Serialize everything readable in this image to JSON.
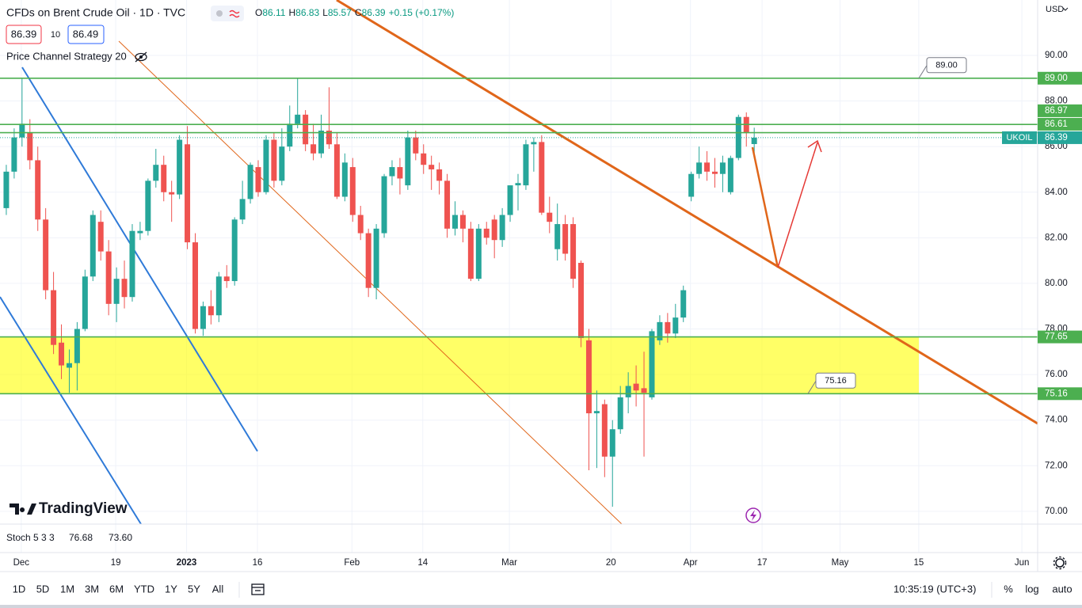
{
  "header": {
    "symbol": "CFDs on Brent Crude Oil · 1D · TVC",
    "o": "O",
    "h": "H",
    "l": "L",
    "c": "C",
    "change": "+0.15 (+0.17%)",
    "bid": "86.39",
    "spread": "10",
    "ask": "86.49",
    "strategy": "Price Channel Strategy 20",
    "currency": "USD",
    "logo": "TradingView"
  },
  "indicator": {
    "name": "Stoch 5 3 3",
    "k": "76.68",
    "d": "73.60"
  },
  "toolbar": {
    "ranges": [
      "1D",
      "5D",
      "1M",
      "3M",
      "6M",
      "YTD",
      "1Y",
      "5Y",
      "All"
    ],
    "clock": "10:35:19 (UTC+3)",
    "percent": "%",
    "log": "log",
    "auto": "auto"
  },
  "chart_data": {
    "type": "candlestick",
    "up_color": "#26a69a",
    "down_color": "#ef5350",
    "level_color": "#4caf50",
    "symbol_label": "UKOIL",
    "grid": true,
    "x": [
      0,
      1,
      2,
      3,
      4,
      5,
      6,
      7,
      8,
      9,
      10,
      11,
      12,
      13,
      14,
      15,
      16,
      17,
      18,
      19,
      20,
      21,
      22,
      23,
      24,
      25,
      26,
      27,
      28,
      29,
      30,
      31,
      32,
      33,
      34,
      35,
      36,
      37,
      38,
      39,
      40,
      41,
      42,
      43,
      44,
      45,
      46,
      47,
      48,
      49,
      50,
      51,
      52,
      53,
      54,
      55,
      56,
      57,
      58,
      59,
      60,
      61,
      62,
      63,
      64,
      65,
      66,
      67,
      68,
      69,
      70,
      71,
      72,
      73,
      74,
      75,
      76,
      77,
      78,
      79,
      80,
      81,
      82,
      83,
      84,
      85,
      86,
      87,
      88,
      89,
      90,
      91,
      92,
      93,
      94,
      95
    ],
    "open": [
      83.3,
      84.9,
      86.4,
      86.6,
      85.4,
      82.8,
      79.7,
      77.4,
      76.3,
      76.5,
      78.0,
      80.3,
      82.7,
      81.4,
      79.1,
      80.2,
      79.4,
      82.2,
      82.3,
      84.5,
      85.2,
      84.0,
      83.9,
      86.1,
      81.8,
      78.0,
      79.0,
      78.6,
      80.3,
      80.1,
      82.8,
      83.7,
      85.1,
      84.0,
      86.3,
      84.5,
      86.0,
      87.0,
      87.4,
      86.1,
      85.7,
      86.7,
      86.1,
      83.8,
      85.1,
      83.0,
      82.2,
      79.8,
      82.2,
      84.7,
      85.1,
      84.3,
      86.4,
      85.7,
      85.2,
      85.0,
      84.5,
      82.4,
      83.0,
      82.4,
      80.2,
      82.4,
      82.8,
      81.9,
      83.0,
      84.3,
      84.3,
      86.1,
      86.2,
      83.1,
      81.5,
      82.6,
      82.6,
      80.9,
      77.5,
      74.3,
      74.7,
      72.4,
      73.6,
      75.0,
      75.6,
      75.4,
      75.0,
      77.5,
      78.3,
      77.8,
      78.5,
      83.8,
      84.8,
      85.3,
      84.9,
      84.8,
      84.0,
      85.5,
      87.3,
      86.11
    ],
    "high": [
      85.2,
      86.8,
      89.0,
      87.2,
      86.0,
      83.3,
      80.5,
      78.2,
      77.1,
      78.3,
      80.6,
      83.2,
      83.2,
      81.9,
      80.7,
      81.0,
      82.6,
      82.7,
      84.6,
      85.9,
      85.6,
      84.5,
      86.5,
      86.9,
      82.2,
      79.2,
      79.7,
      80.5,
      80.8,
      82.9,
      84.5,
      85.3,
      85.4,
      86.5,
      86.6,
      86.8,
      87.8,
      89.0,
      87.6,
      87.0,
      87.4,
      88.6,
      86.6,
      85.7,
      85.5,
      83.4,
      82.4,
      82.6,
      84.8,
      85.4,
      85.5,
      86.7,
      86.7,
      86.1,
      85.6,
      85.3,
      84.8,
      83.6,
      83.2,
      82.7,
      82.6,
      82.7,
      83.0,
      83.3,
      84.3,
      84.8,
      86.3,
      86.4,
      86.5,
      83.8,
      83.5,
      83.0,
      82.9,
      81.0,
      78.0,
      75.3,
      74.9,
      74.0,
      75.5,
      76.1,
      76.4,
      77.0,
      78.0,
      78.6,
      78.7,
      79.1,
      79.9,
      84.9,
      86.0,
      85.8,
      85.5,
      85.6,
      85.6,
      87.4,
      87.5,
      86.83
    ],
    "low": [
      83.0,
      84.6,
      86.0,
      85.0,
      82.3,
      79.3,
      76.9,
      75.8,
      75.2,
      75.3,
      77.9,
      80.1,
      81.0,
      78.6,
      78.3,
      78.9,
      79.2,
      81.9,
      82.1,
      84.2,
      83.6,
      82.7,
      83.7,
      81.5,
      77.8,
      77.7,
      78.2,
      78.3,
      79.8,
      79.9,
      82.6,
      83.5,
      83.8,
      83.9,
      84.2,
      84.3,
      85.8,
      86.8,
      85.8,
      85.4,
      85.5,
      85.9,
      83.7,
      83.6,
      82.7,
      81.9,
      79.4,
      79.3,
      82.0,
      84.3,
      83.9,
      84.1,
      85.4,
      84.8,
      84.1,
      83.9,
      82.0,
      82.1,
      81.8,
      80.1,
      80.1,
      81.7,
      81.1,
      81.6,
      82.7,
      83.2,
      84.1,
      84.9,
      83.0,
      82.2,
      81.0,
      81.0,
      79.8,
      77.2,
      71.8,
      71.9,
      71.5,
      70.2,
      73.4,
      74.3,
      74.6,
      72.4,
      74.9,
      77.3,
      77.4,
      77.6,
      78.3,
      83.6,
      84.6,
      84.5,
      84.2,
      84.0,
      83.9,
      85.4,
      86.0,
      85.57
    ],
    "close": [
      84.9,
      86.4,
      87.0,
      85.4,
      82.8,
      79.7,
      77.3,
      76.4,
      76.5,
      78.0,
      80.3,
      83.0,
      81.4,
      79.1,
      80.2,
      79.4,
      82.3,
      82.3,
      84.5,
      85.2,
      84.0,
      83.9,
      86.3,
      81.8,
      78.0,
      79.0,
      78.6,
      80.3,
      80.1,
      82.8,
      83.7,
      85.2,
      84.0,
      86.3,
      84.5,
      86.0,
      87.0,
      87.4,
      86.1,
      85.7,
      86.7,
      86.1,
      83.8,
      85.3,
      83.0,
      82.2,
      79.8,
      82.4,
      84.7,
      85.1,
      84.6,
      86.4,
      85.7,
      85.2,
      85.0,
      84.5,
      82.4,
      83.0,
      82.4,
      80.2,
      82.4,
      82.0,
      81.9,
      83.0,
      84.3,
      84.4,
      86.1,
      86.2,
      83.1,
      82.7,
      82.6,
      81.3,
      80.2,
      77.6,
      74.3,
      74.4,
      72.4,
      73.6,
      75.0,
      75.5,
      75.3,
      75.2,
      77.9,
      78.3,
      77.8,
      78.5,
      79.7,
      84.8,
      85.3,
      84.9,
      84.8,
      85.3,
      85.5,
      87.3,
      86.6,
      86.39
    ],
    "levels": [
      {
        "value": 89.0,
        "label": "89.00"
      },
      {
        "value": 86.97,
        "label": "86.97"
      },
      {
        "value": 86.61,
        "label": "86.61"
      },
      {
        "value": 77.65,
        "label": "77.65"
      },
      {
        "value": 75.16,
        "label": "75.16"
      }
    ],
    "xlim": [
      -0.8,
      131
    ],
    "xticks": [
      {
        "value": 1.9,
        "label": "Dec"
      },
      {
        "value": 13.9,
        "label": "19"
      },
      {
        "value": 22.9,
        "label": "2023"
      },
      {
        "value": 31.9,
        "label": "16"
      },
      {
        "value": 43.9,
        "label": "Feb"
      },
      {
        "value": 52.9,
        "label": "14"
      },
      {
        "value": 63.9,
        "label": "Mar"
      },
      {
        "value": 76.8,
        "label": "20"
      },
      {
        "value": 86.9,
        "label": "Apr"
      },
      {
        "value": 96.0,
        "label": "17"
      },
      {
        "value": 105.9,
        "label": "May"
      },
      {
        "value": 115.9,
        "label": "15"
      },
      {
        "value": 129,
        "label": "Jun"
      }
    ],
    "ylim": [
      69.44,
      92.43
    ],
    "yticks": [
      {
        "value": 70,
        "label": "70.00"
      },
      {
        "value": 72,
        "label": "72.00"
      },
      {
        "value": 74,
        "label": "74.00"
      },
      {
        "value": 76,
        "label": "76.00"
      },
      {
        "value": 78,
        "label": "78.00"
      },
      {
        "value": 80,
        "label": "80.00"
      },
      {
        "value": 82,
        "label": "82.00"
      },
      {
        "value": 84,
        "label": "84.00"
      },
      {
        "value": 86,
        "label": "86.00"
      },
      {
        "value": 88,
        "label": "88.00"
      },
      {
        "value": 90,
        "label": "90.00"
      }
    ]
  }
}
